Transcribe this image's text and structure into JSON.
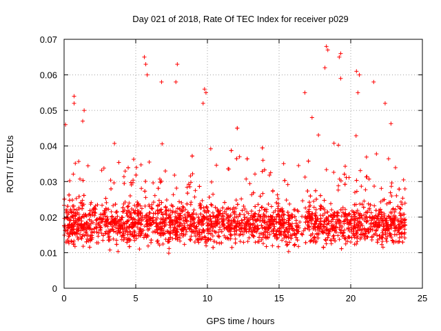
{
  "chart_data": {
    "type": "scatter",
    "title": "Day 021 of 2018, Rate Of TEC Index for receiver p029",
    "xlabel": "GPS time / hours",
    "ylabel": "ROTI / TECUs",
    "xlim": [
      0,
      25
    ],
    "ylim": [
      0,
      0.07
    ],
    "xticks": [
      0,
      5,
      10,
      15,
      20,
      25
    ],
    "yticks": [
      0,
      0.01,
      0.02,
      0.03,
      0.04,
      0.05,
      0.06,
      0.07
    ],
    "xtick_labels": [
      "0",
      "5",
      "10",
      "15",
      "20",
      "25"
    ],
    "ytick_labels": [
      "0",
      "0.01",
      "0.02",
      "0.03",
      "0.04",
      "0.05",
      "0.06",
      "0.07"
    ],
    "grid": true,
    "marker": "+",
    "color": "#ff0000",
    "data_time_range_hours": [
      0,
      23.8
    ],
    "bulk_range": [
      0.005,
      0.03
    ],
    "median_approx": 0.018,
    "notable_points": [
      {
        "x": 5.6,
        "y": 0.065
      },
      {
        "x": 5.7,
        "y": 0.063
      },
      {
        "x": 5.8,
        "y": 0.06
      },
      {
        "x": 7.9,
        "y": 0.063
      },
      {
        "x": 6.8,
        "y": 0.058
      },
      {
        "x": 7.8,
        "y": 0.058
      },
      {
        "x": 18.3,
        "y": 0.068
      },
      {
        "x": 18.4,
        "y": 0.067
      },
      {
        "x": 18.2,
        "y": 0.062
      },
      {
        "x": 19.3,
        "y": 0.066
      },
      {
        "x": 19.2,
        "y": 0.065
      },
      {
        "x": 19.3,
        "y": 0.059
      },
      {
        "x": 20.4,
        "y": 0.061
      },
      {
        "x": 20.6,
        "y": 0.06
      },
      {
        "x": 20.5,
        "y": 0.055
      },
      {
        "x": 21.6,
        "y": 0.058
      },
      {
        "x": 22.4,
        "y": 0.052
      },
      {
        "x": 9.8,
        "y": 0.056
      },
      {
        "x": 9.9,
        "y": 0.055
      },
      {
        "x": 9.7,
        "y": 0.052
      },
      {
        "x": 0.7,
        "y": 0.054
      },
      {
        "x": 0.7,
        "y": 0.052
      },
      {
        "x": 1.4,
        "y": 0.05
      },
      {
        "x": 1.3,
        "y": 0.047
      },
      {
        "x": 0.1,
        "y": 0.046
      },
      {
        "x": 16.8,
        "y": 0.055
      },
      {
        "x": 17.3,
        "y": 0.048
      }
    ]
  }
}
